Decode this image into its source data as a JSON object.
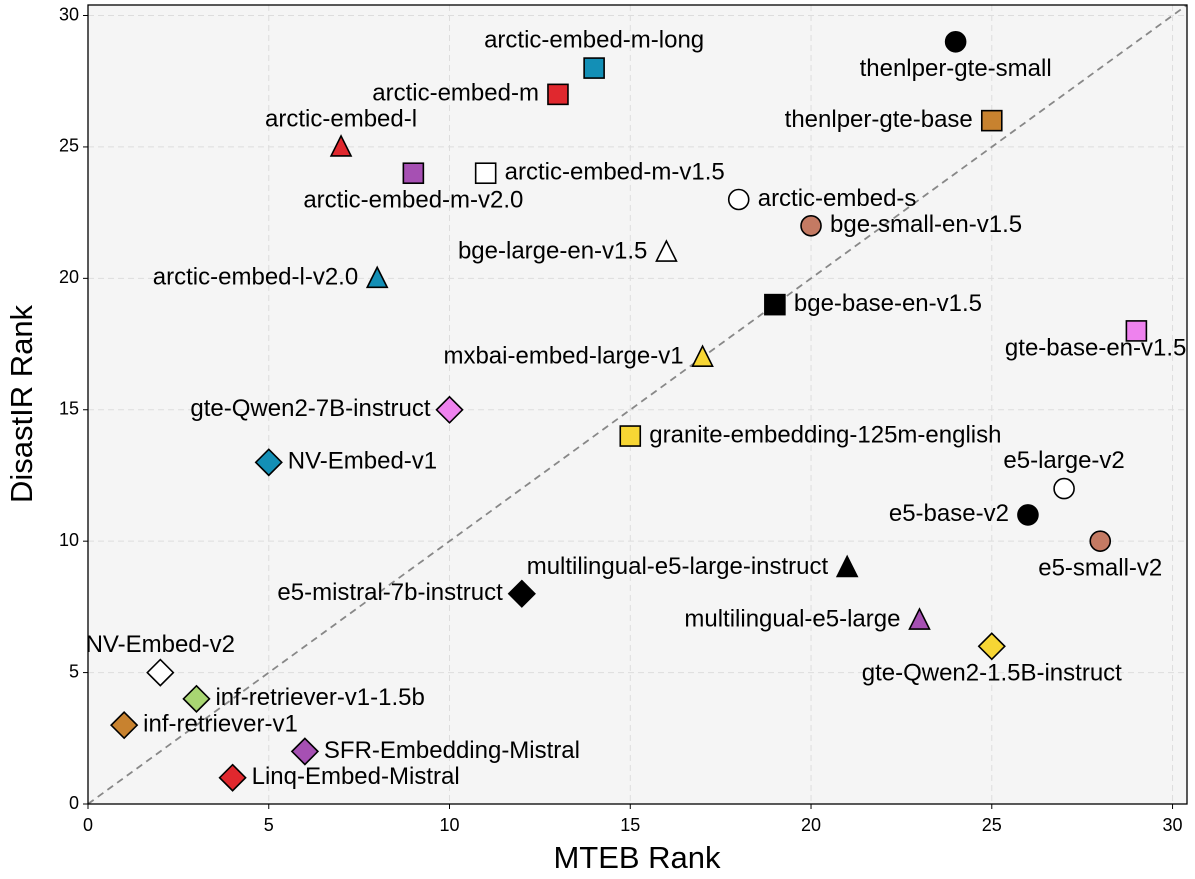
{
  "chart_data": {
    "type": "scatter",
    "xlabel": "MTEB Rank",
    "ylabel": "DisastIR Rank",
    "xlim": [
      0,
      30.4
    ],
    "ylim": [
      0,
      30.4
    ],
    "xticks": [
      0,
      5,
      10,
      15,
      20,
      25,
      30
    ],
    "yticks": [
      0,
      5,
      10,
      15,
      20,
      25,
      30
    ],
    "grid": true,
    "diagonal": true,
    "points": [
      {
        "name": "arctic-embed-m-long",
        "x": 14,
        "y": 28,
        "marker": "square",
        "color": "#138fb6"
      },
      {
        "name": "arctic-embed-m",
        "x": 13,
        "y": 27,
        "marker": "square",
        "color": "#e0282e"
      },
      {
        "name": "arctic-embed-l",
        "x": 7,
        "y": 25,
        "marker": "triangle",
        "color": "#e0282e"
      },
      {
        "name": "arctic-embed-m-v2.0",
        "x": 9,
        "y": 24,
        "marker": "square",
        "color": "#a650b3"
      },
      {
        "name": "arctic-embed-m-v1.5",
        "x": 11,
        "y": 24,
        "marker": "square",
        "color": "#ffffff"
      },
      {
        "name": "thenlper-gte-small",
        "x": 24,
        "y": 29,
        "marker": "circle",
        "color": "#000000"
      },
      {
        "name": "thenlper-gte-base",
        "x": 25,
        "y": 26,
        "marker": "square",
        "color": "#c8822f"
      },
      {
        "name": "arctic-embed-s",
        "x": 18,
        "y": 23,
        "marker": "circle",
        "color": "#ffffff"
      },
      {
        "name": "bge-small-en-v1.5",
        "x": 20,
        "y": 22,
        "marker": "circle",
        "color": "#c47a63"
      },
      {
        "name": "bge-large-en-v1.5",
        "x": 16,
        "y": 21,
        "marker": "triangle",
        "color": "#ffffff"
      },
      {
        "name": "arctic-embed-l-v2.0",
        "x": 8,
        "y": 20,
        "marker": "triangle",
        "color": "#138fb6"
      },
      {
        "name": "bge-base-en-v1.5",
        "x": 19,
        "y": 19,
        "marker": "square",
        "color": "#000000"
      },
      {
        "name": "gte-base-en-v1.5",
        "x": 29,
        "y": 18,
        "marker": "square",
        "color": "#ee82ee"
      },
      {
        "name": "mxbai-embed-large-v1",
        "x": 17,
        "y": 17,
        "marker": "triangle",
        "color": "#f7d634"
      },
      {
        "name": "gte-Qwen2-7B-instruct",
        "x": 10,
        "y": 15,
        "marker": "diamond",
        "color": "#ee82ee"
      },
      {
        "name": "granite-embedding-125m-english",
        "x": 15,
        "y": 14,
        "marker": "square",
        "color": "#f7d634"
      },
      {
        "name": "NV-Embed-v1",
        "x": 5,
        "y": 13,
        "marker": "diamond",
        "color": "#138fb6"
      },
      {
        "name": "e5-large-v2",
        "x": 27,
        "y": 12,
        "marker": "circle",
        "color": "#ffffff"
      },
      {
        "name": "e5-base-v2",
        "x": 26,
        "y": 11,
        "marker": "circle",
        "color": "#000000"
      },
      {
        "name": "e5-small-v2",
        "x": 28,
        "y": 10,
        "marker": "circle",
        "color": "#c47a63"
      },
      {
        "name": "multilingual-e5-large-instruct",
        "x": 21,
        "y": 9,
        "marker": "triangle",
        "color": "#000000"
      },
      {
        "name": "e5-mistral-7b-instruct",
        "x": 12,
        "y": 8,
        "marker": "diamond",
        "color": "#000000"
      },
      {
        "name": "multilingual-e5-large",
        "x": 23,
        "y": 7,
        "marker": "triangle",
        "color": "#a650b3"
      },
      {
        "name": "gte-Qwen2-1.5B-instruct",
        "x": 25,
        "y": 6,
        "marker": "diamond",
        "color": "#f7d634"
      },
      {
        "name": "NV-Embed-v2",
        "x": 2,
        "y": 5,
        "marker": "diamond",
        "color": "#ffffff"
      },
      {
        "name": "inf-retriever-v1-1.5b",
        "x": 3,
        "y": 4,
        "marker": "diamond",
        "color": "#a8d672"
      },
      {
        "name": "inf-retriever-v1",
        "x": 1,
        "y": 3,
        "marker": "diamond",
        "color": "#c8822f"
      },
      {
        "name": "SFR-Embedding-Mistral",
        "x": 6,
        "y": 2,
        "marker": "diamond",
        "color": "#a650b3"
      },
      {
        "name": "Linq-Embed-Mistral",
        "x": 4,
        "y": 1,
        "marker": "diamond",
        "color": "#e0282e"
      }
    ]
  }
}
